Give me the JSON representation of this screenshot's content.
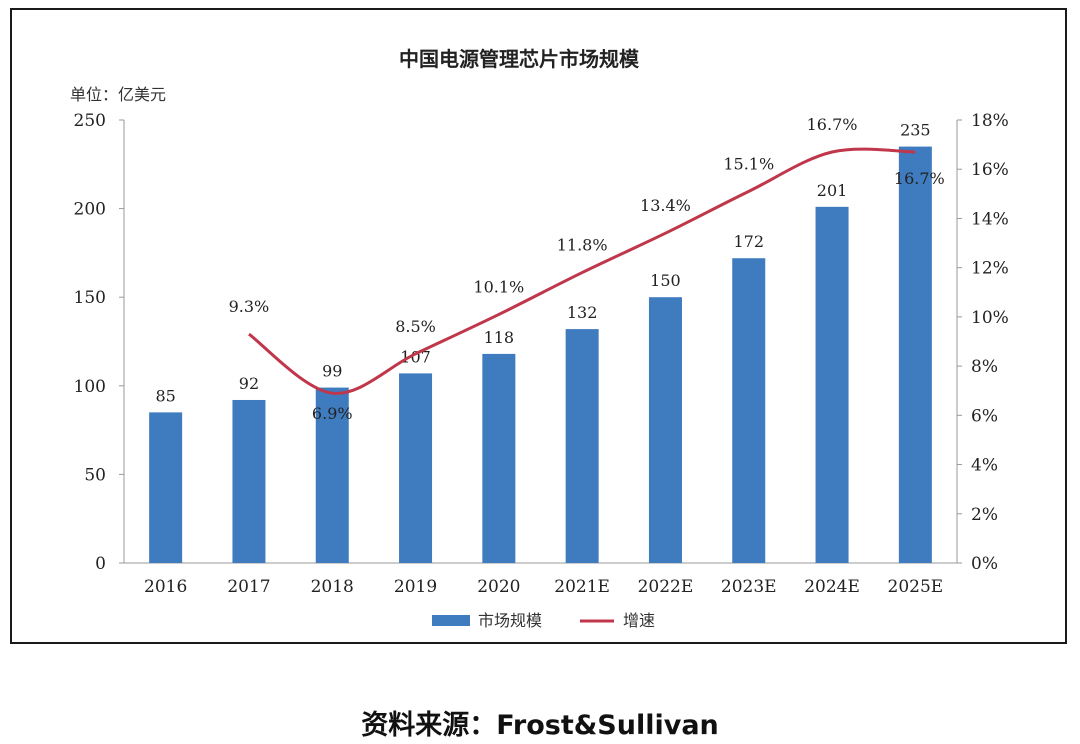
{
  "chart_data": {
    "type": "bar",
    "title": "中国电源管理芯片市场规模",
    "unit_label": "单位：亿美元",
    "categories": [
      "2016",
      "2017",
      "2018",
      "2019",
      "2020",
      "2021E",
      "2022E",
      "2023E",
      "2024E",
      "2025E"
    ],
    "series": [
      {
        "name": "市场规模",
        "type": "bar",
        "axis": "left",
        "color": "#3f7bbf",
        "values": [
          85,
          92,
          99,
          107,
          118,
          132,
          150,
          172,
          201,
          235
        ]
      },
      {
        "name": "增速",
        "type": "line",
        "axis": "right",
        "color": "#c0364a",
        "values": [
          null,
          9.3,
          6.9,
          8.5,
          10.1,
          11.8,
          13.4,
          15.1,
          16.7,
          16.7
        ],
        "labels": [
          "",
          "9.3%",
          "6.9%",
          "8.5%",
          "10.1%",
          "11.8%",
          "13.4%",
          "15.1%",
          "16.7%",
          "16.7%"
        ]
      }
    ],
    "ylim": [
      0,
      250
    ],
    "yticks": [
      0,
      50,
      100,
      150,
      200,
      250
    ],
    "y2lim": [
      0,
      18
    ],
    "y2ticks": [
      "0%",
      "2%",
      "4%",
      "6%",
      "8%",
      "10%",
      "12%",
      "14%",
      "16%",
      "18%"
    ],
    "grid": false,
    "legend_position": "bottom"
  },
  "source": "资料来源：Frost&Sullivan"
}
